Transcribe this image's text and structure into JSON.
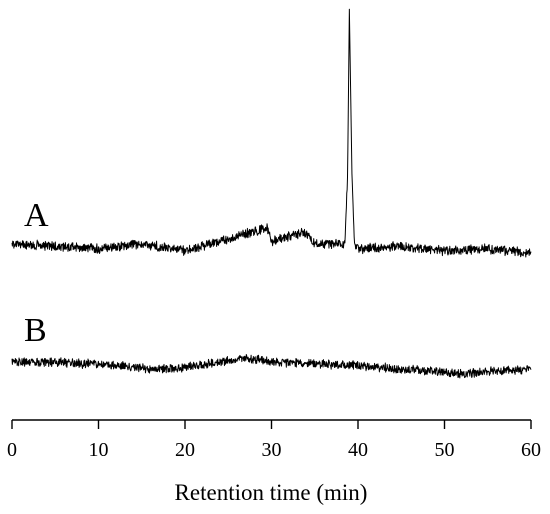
{
  "chart_data": {
    "type": "line",
    "title": "",
    "xlabel": "Retention time (min)",
    "ylabel": "",
    "xlim": [
      0,
      60
    ],
    "xticks": [
      0,
      10,
      20,
      30,
      40,
      50,
      60
    ],
    "grid": false,
    "legend": "none",
    "series": [
      {
        "name": "A",
        "baseline": "flat with noise",
        "peak": {
          "x": 39,
          "height": "tall sharp peak, ~8.5x baseline offset"
        },
        "points": [
          [
            0,
            0.0
          ],
          [
            5,
            -0.01
          ],
          [
            10,
            -0.02
          ],
          [
            15,
            0.0
          ],
          [
            20,
            -0.03
          ],
          [
            25,
            0.02
          ],
          [
            29.5,
            0.07
          ],
          [
            30,
            0.01
          ],
          [
            33.8,
            0.05
          ],
          [
            35,
            0.0
          ],
          [
            38.5,
            0.0
          ],
          [
            38.8,
            0.3
          ],
          [
            39,
            1.0
          ],
          [
            39.3,
            0.3
          ],
          [
            39.6,
            0.0
          ],
          [
            40,
            -0.02
          ],
          [
            45,
            -0.01
          ],
          [
            50,
            -0.03
          ],
          [
            55,
            -0.02
          ],
          [
            60,
            -0.04
          ]
        ]
      },
      {
        "name": "B",
        "baseline": "gently wavy with noise",
        "points": [
          [
            0,
            0.0
          ],
          [
            5,
            0.0
          ],
          [
            10,
            -0.02
          ],
          [
            15,
            -0.05
          ],
          [
            18,
            -0.06
          ],
          [
            22,
            -0.02
          ],
          [
            27,
            0.03
          ],
          [
            30,
            0.01
          ],
          [
            35,
            -0.02
          ],
          [
            40,
            -0.03
          ],
          [
            45,
            -0.06
          ],
          [
            50,
            -0.08
          ],
          [
            52,
            -0.1
          ],
          [
            55,
            -0.08
          ],
          [
            60,
            -0.06
          ]
        ]
      }
    ]
  }
}
